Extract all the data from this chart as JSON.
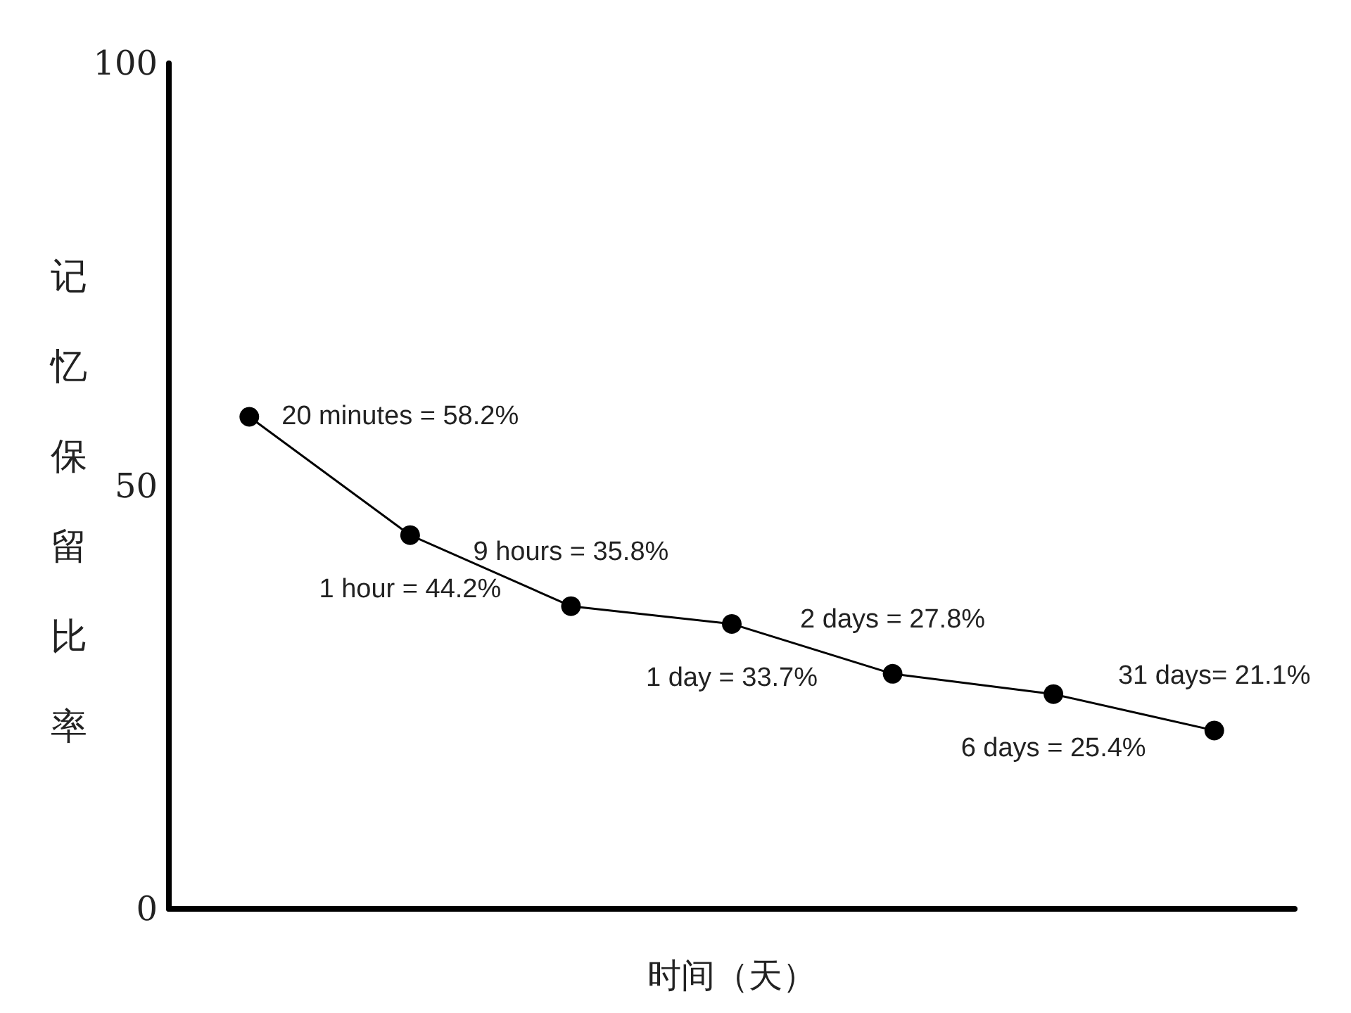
{
  "chart_data": {
    "type": "line",
    "xlabel": "时间（天）",
    "ylabel": "记忆保留比率",
    "categories": [
      null,
      null,
      null,
      null,
      null,
      null,
      null
    ],
    "values": [
      58.2,
      44.2,
      35.8,
      33.7,
      27.8,
      25.4,
      21.1
    ],
    "value_labels": [
      "20 minutes = 58.2%",
      "1 hour = 44.2%",
      "9 hours = 35.8%",
      "1 day = 33.7%",
      "2 days = 27.8%",
      "6 days = 25.4%",
      "31 days= 21.1%"
    ],
    "color": "#000000",
    "ylim": [
      0,
      100
    ],
    "yticks": [
      0,
      50,
      100
    ],
    "grid": false,
    "marker": "circle",
    "line_style": "solid"
  }
}
